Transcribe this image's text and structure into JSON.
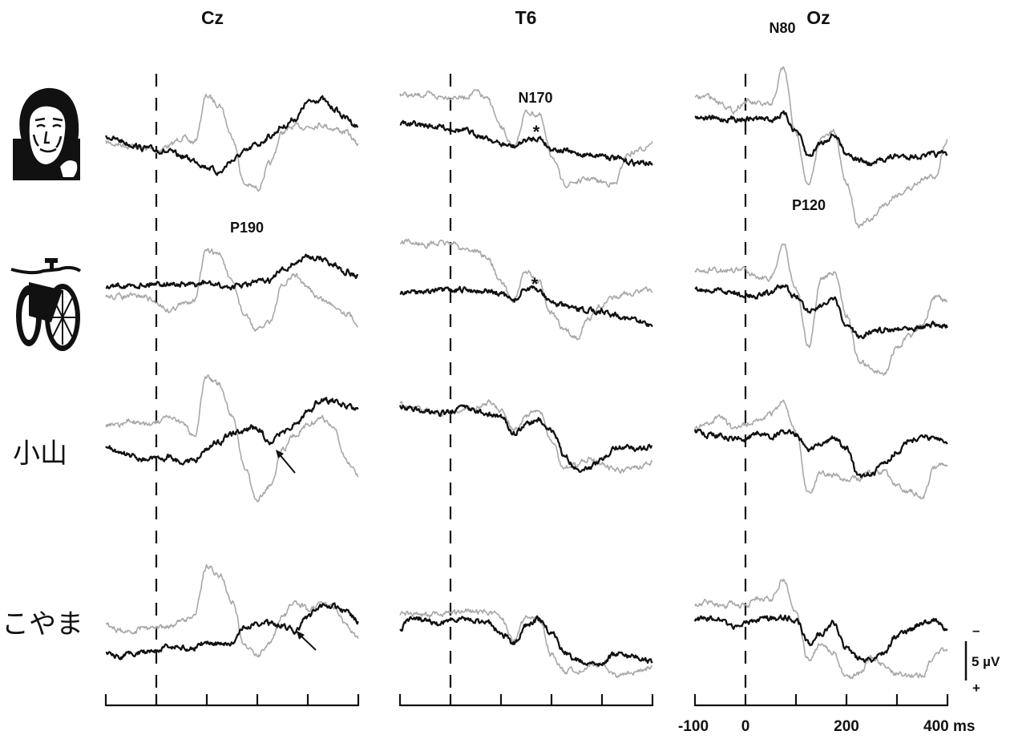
{
  "chart_data": {
    "type": "line",
    "title": "",
    "columns": [
      "Cz",
      "T6",
      "Oz"
    ],
    "rows": [
      {
        "stimulus": "face-drawing"
      },
      {
        "stimulus": "bicycle-drawing"
      },
      {
        "stimulus_text": "小山"
      },
      {
        "stimulus_text": "こやま"
      }
    ],
    "xlabel": "ms",
    "x_unit": "ms",
    "xlim": [
      -100,
      400
    ],
    "x_tick_values": [
      -100,
      0,
      100,
      200,
      300,
      400
    ],
    "x_tick_labels": [
      "-100",
      "0",
      "200",
      "400 ms"
    ],
    "stimulus_onset_ms": 0,
    "y_unit": "µV",
    "negative_up": true,
    "scale_bar": {
      "value": 5,
      "label": "5 µV",
      "neg_label": "–",
      "pos_label": "+"
    },
    "series_colors": {
      "black": "#111111",
      "gray": "#a8a8a8"
    },
    "times": [
      -100,
      -75,
      -50,
      -25,
      0,
      25,
      50,
      75,
      100,
      125,
      150,
      175,
      200,
      225,
      250,
      275,
      300,
      325,
      350,
      375,
      400
    ],
    "panels": [
      {
        "row": 0,
        "col": 0,
        "black": [
          -1.5,
          -1,
          -0.5,
          0,
          0.2,
          0.5,
          1,
          1.5,
          2.3,
          3,
          1.5,
          0.5,
          -0.5,
          -1.5,
          -2.7,
          -3.7,
          -5.7,
          -6.2,
          -5,
          -3.8,
          -2.7
        ],
        "gray": [
          -0.7,
          -0.5,
          -0.3,
          0,
          0.3,
          -0.3,
          -1.3,
          -0.7,
          -6.5,
          -5.5,
          -1.5,
          4.5,
          5,
          2,
          -2,
          -2.7,
          -2.7,
          -3,
          -2.5,
          -2,
          -0.5
        ]
      },
      {
        "row": 0,
        "col": 1,
        "black": [
          -3.2,
          -3,
          -2.8,
          -2.7,
          -2.5,
          -2.2,
          -1.8,
          -1.2,
          -0.5,
          -0.2,
          -1,
          -1.3,
          0,
          0.3,
          0.7,
          0.8,
          0.8,
          1.2,
          1.7,
          1.8,
          1.9
        ],
        "gray": [
          -6.8,
          -6.5,
          -6.7,
          -6.4,
          -6.5,
          -6.3,
          -7,
          -6,
          -2.5,
          0,
          -4.5,
          -4.2,
          0.8,
          4.5,
          4.2,
          3.8,
          4.2,
          4.5,
          0.8,
          0.2,
          -0.8
        ]
      },
      {
        "row": 0,
        "col": 2,
        "black": [
          -4,
          -3.8,
          -3.6,
          -3.7,
          -3.7,
          -3.7,
          -3.6,
          -4.2,
          -2.2,
          1,
          -0.7,
          -1.7,
          0.5,
          1.5,
          2,
          1.3,
          1,
          1,
          1,
          0.8,
          0.7
        ],
        "gray": [
          -6.2,
          -6.5,
          -5.8,
          -4.7,
          -5.8,
          -5.5,
          -5.3,
          -10,
          -1.8,
          4.7,
          -1.2,
          -2,
          4.2,
          9.8,
          8.8,
          7,
          5.8,
          5,
          3.8,
          3.5,
          -1.2
        ]
      },
      {
        "row": 1,
        "col": 0,
        "black": [
          0,
          -0.5,
          -0.3,
          -0.5,
          -0.7,
          -0.6,
          -0.5,
          -0.4,
          -0.7,
          -0.3,
          -0.2,
          -0.4,
          -0.8,
          -1,
          -2.3,
          -3.2,
          -4,
          -3.8,
          -3,
          -2.2,
          -1.5
        ],
        "gray": [
          1,
          1,
          1,
          1,
          1.7,
          2.7,
          2,
          1.3,
          -4.7,
          -4.3,
          -0.7,
          3.3,
          5.3,
          4,
          -0.3,
          -1.7,
          0,
          1.3,
          2,
          3,
          4.3
        ]
      },
      {
        "row": 1,
        "col": 1,
        "black": [
          0.5,
          0.4,
          0.3,
          0.3,
          0.3,
          0.2,
          0.2,
          0.3,
          0.7,
          1.5,
          0,
          0.2,
          1.7,
          2.2,
          2.7,
          2.7,
          2.8,
          3.2,
          3.7,
          4.2,
          4.5
        ],
        "gray": [
          -5.7,
          -5.7,
          -5.5,
          -5.6,
          -5.7,
          -5,
          -4.7,
          -3.7,
          -0.7,
          1.5,
          -2.2,
          -0.7,
          3,
          5.3,
          6,
          3.7,
          2,
          1.2,
          0.7,
          0.2,
          0.3
        ]
      },
      {
        "row": 1,
        "col": 2,
        "black": [
          0.2,
          0.3,
          0.3,
          0.5,
          1,
          0.8,
          0.5,
          -0.3,
          1,
          2.8,
          2,
          1.5,
          4.7,
          6,
          5.3,
          5.2,
          5,
          4.8,
          4.7,
          4.5,
          4.8
        ],
        "gray": [
          -2.2,
          -2.3,
          -2.3,
          -2.3,
          -2.3,
          -1.5,
          -1.3,
          -5.5,
          0,
          7.3,
          -1.3,
          -2,
          3.3,
          9,
          10,
          10.7,
          7.3,
          6,
          4.3,
          1,
          1.7
        ]
      },
      {
        "row": 2,
        "col": 0,
        "black": [
          1.2,
          2,
          2.3,
          2.8,
          2.8,
          2.5,
          3,
          3,
          1.5,
          0.5,
          -0.3,
          -0.8,
          -1.2,
          0.7,
          -0.5,
          -1.5,
          -3.2,
          -4.5,
          -4.5,
          -3.8,
          -3.5
        ],
        "gray": [
          -1.3,
          -1.5,
          -2,
          -1.5,
          -1.7,
          -2.3,
          -1.7,
          -0.2,
          -7.5,
          -6.5,
          -2.8,
          3.8,
          7.8,
          6.2,
          1.5,
          -0.2,
          -1.5,
          -2.5,
          -1.2,
          2.8,
          4.8
        ]
      },
      {
        "row": 2,
        "col": 1,
        "black": [
          -3.8,
          -3.5,
          -3.3,
          -2.8,
          -3.2,
          -3.8,
          -3.2,
          -2.8,
          -2.5,
          -0.5,
          -1.5,
          -2.2,
          -0.8,
          2.2,
          4,
          3.8,
          2.8,
          1.3,
          1.3,
          1.5,
          1
        ],
        "gray": [
          -4,
          -3.6,
          -3.3,
          -3,
          -3,
          -3.5,
          -3.5,
          -4.2,
          -3.2,
          -0.8,
          -2.5,
          -3.3,
          0.5,
          3.8,
          3.5,
          2.7,
          3.2,
          4.2,
          4.2,
          3.8,
          3.2
        ]
      },
      {
        "row": 2,
        "col": 2,
        "black": [
          -0.7,
          -0.2,
          -0.2,
          0.2,
          0.2,
          -0.5,
          0,
          -0.7,
          -0.2,
          1.7,
          0.7,
          0.2,
          1.5,
          5,
          4.5,
          3.3,
          1.8,
          0.5,
          0,
          0.2,
          0.5
        ],
        "gray": [
          -1,
          -1.8,
          -2.5,
          -1.2,
          -1.5,
          -2.2,
          -2.8,
          -4.3,
          -0.5,
          7.2,
          4.5,
          4.8,
          5.5,
          5.2,
          4.2,
          4.5,
          6.2,
          6.8,
          7.5,
          3.8,
          3.5
        ]
      },
      {
        "row": 3,
        "col": 0,
        "black": [
          4,
          4.5,
          4.2,
          3.7,
          3.5,
          3.3,
          3.3,
          3.3,
          2.7,
          2.8,
          2.7,
          0.8,
          0.2,
          0.3,
          0.5,
          1.2,
          -0.5,
          -2,
          -1.8,
          -1.2,
          0
        ],
        "gray": [
          0.5,
          1.2,
          1.5,
          0.8,
          0.8,
          0.7,
          0,
          -0.8,
          -6.8,
          -5.8,
          -2.5,
          3.2,
          4.2,
          2.8,
          -0.5,
          -2.5,
          -1.5,
          -2.2,
          -1.8,
          0.5,
          2.2
        ]
      },
      {
        "row": 3,
        "col": 1,
        "black": [
          0.8,
          -0.5,
          -0.2,
          0.5,
          -0.2,
          -0.2,
          0,
          0.2,
          1.5,
          2.8,
          0.5,
          -0.2,
          1.5,
          3.8,
          4.8,
          5.3,
          5.2,
          4.2,
          4.3,
          4.5,
          5.2
        ],
        "gray": [
          -0.8,
          -1,
          -0.8,
          -0.8,
          -1,
          -1.2,
          -1.2,
          -1.2,
          -0.5,
          2.5,
          -0.5,
          -0.2,
          4.2,
          6.2,
          6.2,
          5.5,
          5.5,
          6.8,
          6.5,
          6.3,
          5.8
        ]
      },
      {
        "row": 3,
        "col": 2,
        "black": [
          -0.2,
          -0.5,
          0,
          0.7,
          0.2,
          -0.2,
          -0.3,
          -0.5,
          -0.2,
          2.8,
          1.5,
          0.2,
          3.5,
          4.8,
          4.8,
          3.8,
          1.8,
          1.2,
          0.2,
          0,
          1.3
        ],
        "gray": [
          -1.8,
          -2.5,
          -1.8,
          -2.2,
          -2,
          -2.8,
          -2.8,
          -5.2,
          -1.2,
          4.8,
          2.8,
          3.8,
          7.2,
          6.5,
          4.5,
          5.5,
          6.5,
          6.8,
          6.8,
          4.2,
          3.5
        ]
      }
    ],
    "annotations": {
      "n170": "N170",
      "p190": "P190",
      "n80": "N80",
      "p120": "P120",
      "asterisk": "*"
    }
  }
}
